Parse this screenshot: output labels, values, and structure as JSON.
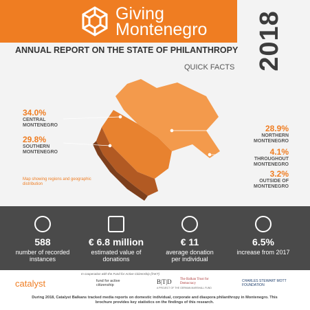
{
  "header": {
    "brand_line1": "Giving",
    "brand_line2": "Montenegro",
    "year": "2018",
    "title": "ANNUAL REPORT ON THE STATE OF PHILANTHROPY",
    "subtitle": "QUICK FACTS"
  },
  "regions": [
    {
      "value": "34.0%",
      "label": "CENTRAL MONTENEGRO"
    },
    {
      "value": "29.8%",
      "label": "SOUTHERN MONTENEGRO"
    },
    {
      "value": "28.9%",
      "label": "NORTHERN MONTENEGRO"
    },
    {
      "value": "4.1%",
      "label": "THROUGHOUT MONTENEGRO"
    },
    {
      "value": "3.2%",
      "label": "OUTSIDE OF MONTENEGRO"
    }
  ],
  "map_note": "Map showing regions and geographic distribution",
  "stats": [
    {
      "value": "588",
      "label": "number of recorded instances"
    },
    {
      "value": "€ 6.8 million",
      "label": "estimated value of donations"
    },
    {
      "value": "€ 11",
      "label": "average donation per individual"
    },
    {
      "value": "6.5%",
      "label": "increase from 2017"
    }
  ],
  "footer": {
    "cooperation": "In cooperation with the Fund for Active Citizenship (fAKT)",
    "logos": [
      "catalyst",
      "fund for active citizenship",
      "B|T|D",
      "The Balkan Trust for Democracy",
      "A PROJECT OF THE GERMAN MARSHALL FUND",
      "CHARLES STEWART MOTT FOUNDATION"
    ],
    "text": "During 2018, Catalyst Balkans tracked media reports on domestic individual, corporate and diaspora philanthropy in Montenegro. This brochure provides key statistics on the findings of this research."
  }
}
